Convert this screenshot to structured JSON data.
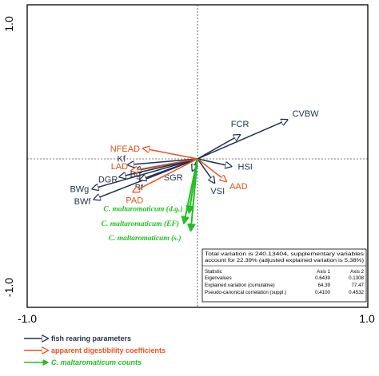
{
  "chart_data": {
    "type": "scatter",
    "subtype": "ordination-biplot",
    "axis_ticks": {
      "x_left": "-1.0",
      "x_right": "1.0",
      "y_top": "1.0",
      "y_bottom": "-1.0"
    },
    "xlim": [
      -1.0,
      1.0
    ],
    "ylim": [
      -1.0,
      1.0
    ],
    "grid": false,
    "zero_lines": true,
    "colors": {
      "fish_rearing": "#1f3050",
      "digestibility": "#e8501e",
      "counts": "#20c020"
    },
    "vectors": [
      {
        "label": "CVBW",
        "group": "fish_rearing",
        "x": 0.53,
        "y": 0.26
      },
      {
        "label": "FCR",
        "group": "fish_rearing",
        "x": 0.25,
        "y": 0.16
      },
      {
        "label": "HSI",
        "group": "fish_rearing",
        "x": 0.2,
        "y": -0.05
      },
      {
        "label": "VSI",
        "group": "fish_rearing",
        "x": 0.1,
        "y": -0.16
      },
      {
        "label": "SGR",
        "group": "fish_rearing",
        "x": -0.03,
        "y": -0.08
      },
      {
        "label": "Kf",
        "group": "fish_rearing",
        "x": -0.41,
        "y": -0.04
      },
      {
        "label": "Bg",
        "group": "fish_rearing",
        "x": -0.37,
        "y": -0.08
      },
      {
        "label": "DGR",
        "group": "fish_rearing",
        "x": -0.46,
        "y": -0.12
      },
      {
        "label": "BWg",
        "group": "fish_rearing",
        "x": -0.62,
        "y": -0.2
      },
      {
        "label": "BWf",
        "group": "fish_rearing",
        "x": -0.61,
        "y": -0.27
      },
      {
        "label": "Bf",
        "group": "fish_rearing",
        "x": -0.34,
        "y": -0.14
      },
      {
        "label": "NFEAD",
        "group": "digestibility",
        "x": -0.32,
        "y": 0.07
      },
      {
        "label": "LAD",
        "group": "digestibility",
        "x": -0.39,
        "y": -0.08
      },
      {
        "label": "PAD",
        "group": "digestibility",
        "x": -0.38,
        "y": -0.22
      },
      {
        "label": "AAD",
        "group": "digestibility",
        "x": 0.17,
        "y": -0.15
      },
      {
        "label": "C. maltaromaticum (d.g.)",
        "group": "counts",
        "x": -0.05,
        "y": -0.36
      },
      {
        "label": "C. maltaromaticum (EF)",
        "group": "counts",
        "x": -0.08,
        "y": -0.43
      },
      {
        "label": "C. maltaromaticum (s.)",
        "group": "counts",
        "x": -0.04,
        "y": -0.48
      }
    ],
    "legend": [
      {
        "label": "fish rearing parameters",
        "group": "fish_rearing",
        "italic": false
      },
      {
        "label": "apparent digestibility coefficients",
        "group": "digestibility",
        "italic": false
      },
      {
        "label": "C. maltaromaticum counts",
        "group": "counts",
        "italic": true
      }
    ],
    "legend_position": "bottom-left",
    "stats_box": {
      "position": "bottom-right",
      "note_line1": "Total variation is 240.13404, supplementary variables",
      "note_line2": "account for 22.39% (adjusted explained variation is 5.38%)",
      "header": {
        "statistic": "Statistic",
        "axis1": "Axis 1",
        "axis2": "Axis 2"
      },
      "rows": [
        {
          "label": "Eigenvalues",
          "axis1": "0.6439",
          "axis2": "0.1308"
        },
        {
          "label": "Explained variation (cumulative)",
          "axis1": "64.39",
          "axis2": "77.47"
        },
        {
          "label": "Pseudo-canonical correlation (suppl.)",
          "axis1": "0.4100",
          "axis2": "0.4532"
        }
      ]
    }
  }
}
